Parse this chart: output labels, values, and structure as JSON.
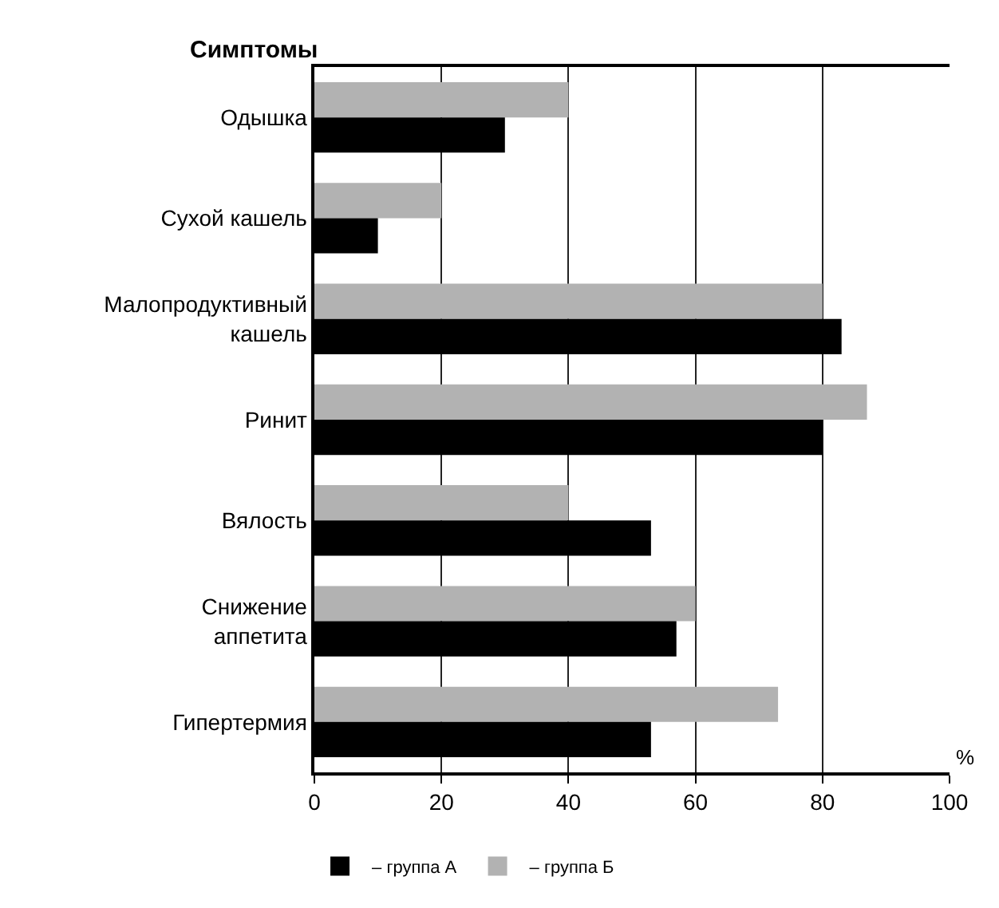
{
  "chart_data": {
    "type": "bar",
    "orientation": "horizontal",
    "ylabel": "Симптомы",
    "xlabel": "%",
    "categories": [
      "Одышка",
      "Сухой кашель",
      "Малопродуктивный\nкашель",
      "Ринит",
      "Вялость",
      "Снижение\nаппетита",
      "Гипертермия"
    ],
    "series": [
      {
        "name": "– группа А",
        "color": "#000000",
        "values": [
          30,
          10,
          83,
          80,
          53,
          57,
          53
        ]
      },
      {
        "name": "– группа Б",
        "color": "#b2b2b2",
        "values": [
          40,
          20,
          80,
          87,
          40,
          60,
          73
        ]
      }
    ],
    "xlim": [
      0,
      100
    ],
    "xticks": [
      0,
      20,
      40,
      60,
      80,
      100
    ],
    "grid": "x",
    "legend": "bottom left"
  }
}
